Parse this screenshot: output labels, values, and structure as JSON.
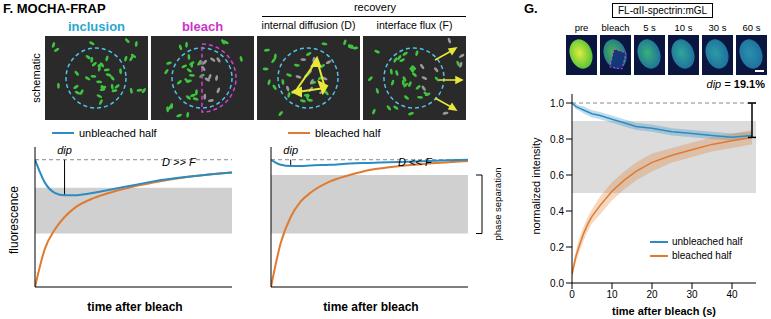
{
  "panel_F": {
    "title": "F. MOCHA-FRAP",
    "side_label": "schematic",
    "group_label": "recovery",
    "columns": [
      "inclusion",
      "bleach",
      "internal diffusion (D)",
      "interface flux (F)"
    ],
    "bracket_label": "phase separation"
  },
  "panel_G": {
    "title": "G.",
    "construct": "FL-αII-spectrin:mGL",
    "frames": [
      "pre",
      "bleach",
      "5 s",
      "10 s",
      "30 s",
      "60 s"
    ]
  },
  "chart_data": [
    {
      "type": "line",
      "annotation": "D >> F",
      "dip_label": "dip",
      "x_label": "time after bleach",
      "y_label": "fluorescence",
      "x": [
        0,
        0.5,
        1,
        1.5,
        2,
        3,
        4,
        5,
        6,
        8,
        10
      ],
      "series": [
        {
          "name": "unbleached half",
          "color": "#2b8cc4",
          "values": [
            1,
            0.82,
            0.74,
            0.72,
            0.72,
            0.74,
            0.77,
            0.8,
            0.83,
            0.87,
            0.9
          ]
        },
        {
          "name": "bleached half",
          "color": "#e07a2f",
          "values": [
            0,
            0.3,
            0.45,
            0.55,
            0.62,
            0.7,
            0.75,
            0.79,
            0.82,
            0.87,
            0.9
          ]
        }
      ],
      "xlim": [
        0,
        10
      ],
      "ylim": [
        0,
        1.1
      ],
      "band": [
        0.42,
        0.78
      ],
      "reference": 1,
      "tick_labels": false
    },
    {
      "type": "line",
      "annotation": "D << F",
      "dip_label": "dip",
      "x_label": "time after bleach",
      "x": [
        0,
        0.5,
        1,
        1.5,
        2,
        3,
        4,
        5,
        6,
        8,
        10
      ],
      "series": [
        {
          "name": "unbleached half",
          "color": "#2b8cc4",
          "values": [
            1,
            0.96,
            0.95,
            0.95,
            0.955,
            0.96,
            0.97,
            0.975,
            0.98,
            0.99,
            1
          ]
        },
        {
          "name": "bleached half",
          "color": "#e07a2f",
          "values": [
            0,
            0.35,
            0.55,
            0.67,
            0.74,
            0.83,
            0.88,
            0.92,
            0.94,
            0.97,
            0.99
          ]
        }
      ],
      "xlim": [
        0,
        10
      ],
      "ylim": [
        0,
        1.1
      ],
      "band": [
        0.42,
        0.88
      ],
      "reference": 1,
      "tick_labels": false
    },
    {
      "type": "line",
      "x_label": "time after bleach (s)",
      "y_label": "normalized intensity",
      "x": [
        0,
        0.5,
        1,
        2,
        3,
        4,
        5,
        7,
        10,
        13,
        16,
        20,
        25,
        30,
        35,
        40,
        45
      ],
      "series": [
        {
          "name": "unbleached half",
          "color": "#2b8cc4",
          "values": [
            1.0,
            0.99,
            0.98,
            0.97,
            0.96,
            0.95,
            0.94,
            0.93,
            0.91,
            0.89,
            0.87,
            0.86,
            0.84,
            0.83,
            0.82,
            0.81,
            0.82
          ],
          "error": [
            0.01,
            0.01,
            0.015,
            0.015,
            0.02,
            0.02,
            0.02,
            0.02,
            0.02,
            0.02,
            0.02,
            0.02,
            0.02,
            0.02,
            0.02,
            0.02,
            0.02
          ]
        },
        {
          "name": "bleached half",
          "color": "#e07a2f",
          "values": [
            0.05,
            0.1,
            0.15,
            0.22,
            0.28,
            0.33,
            0.37,
            0.43,
            0.51,
            0.57,
            0.62,
            0.67,
            0.71,
            0.74,
            0.77,
            0.79,
            0.81
          ],
          "error": [
            0.02,
            0.03,
            0.03,
            0.04,
            0.04,
            0.04,
            0.04,
            0.05,
            0.05,
            0.05,
            0.05,
            0.05,
            0.04,
            0.04,
            0.04,
            0.04,
            0.04
          ]
        }
      ],
      "xlim": [
        0,
        46
      ],
      "xticks": [
        0,
        10,
        20,
        30,
        40
      ],
      "ylim": [
        0,
        1.05
      ],
      "yticks": [
        {
          "value": 0,
          "label": "0.0"
        },
        0.2,
        0.4,
        0.6,
        0.8,
        {
          "value": 1,
          "label": "1.0"
        }
      ],
      "band": [
        0.5,
        0.9
      ],
      "reference": 1,
      "annotation": {
        "text": "dip =",
        "value": 19.1,
        "label": "19.1%"
      }
    }
  ]
}
